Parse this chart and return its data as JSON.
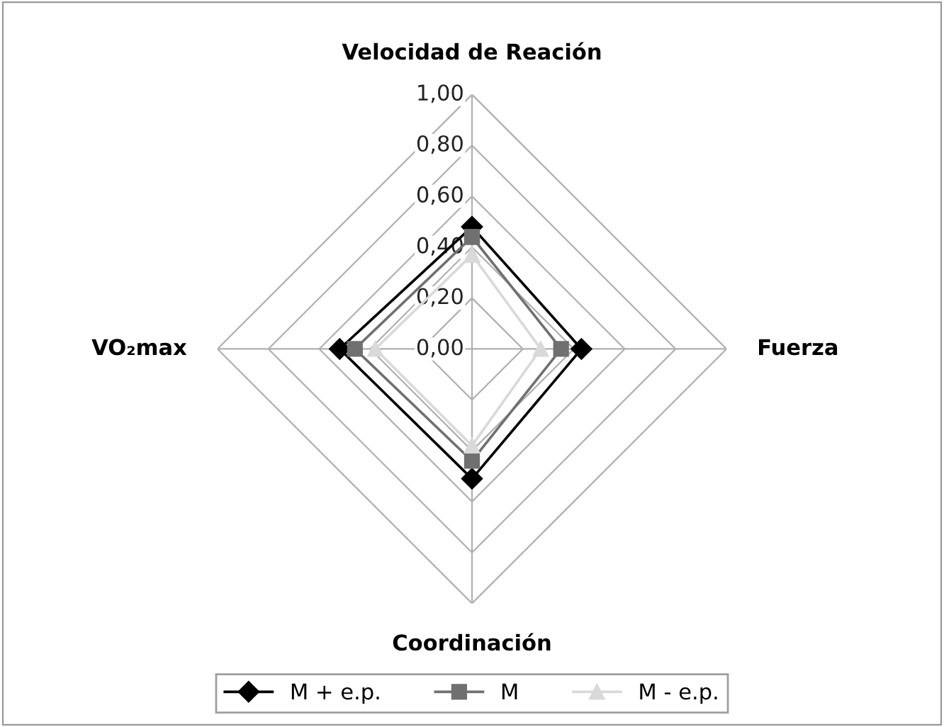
{
  "chart_data": {
    "type": "radar",
    "categories": [
      "Velocidad de Reación",
      "Fuerza",
      "Coordinación",
      "VO₂max"
    ],
    "series": [
      {
        "name": "M + e.p.",
        "color": "#000000",
        "marker": "diamond",
        "values": [
          0.48,
          0.43,
          0.51,
          0.52
        ]
      },
      {
        "name": "M",
        "color": "#707070",
        "marker": "square",
        "values": [
          0.44,
          0.35,
          0.44,
          0.46
        ]
      },
      {
        "name": "M - e.p.",
        "color": "#d9d9d9",
        "marker": "triangle",
        "values": [
          0.37,
          0.27,
          0.38,
          0.38
        ]
      }
    ],
    "ylim": [
      0,
      1
    ],
    "yticks": [
      {
        "value": 0,
        "label": "0,00"
      },
      {
        "value": 0.2,
        "label": "0,20"
      },
      {
        "value": 0.4,
        "label": "0,40"
      },
      {
        "value": 0.6,
        "label": "0,60"
      },
      {
        "value": 0.8,
        "label": "0,80"
      },
      {
        "value": 1,
        "label": "1,00"
      }
    ],
    "grid": true,
    "legend": "bottom",
    "line_style": "solid"
  }
}
